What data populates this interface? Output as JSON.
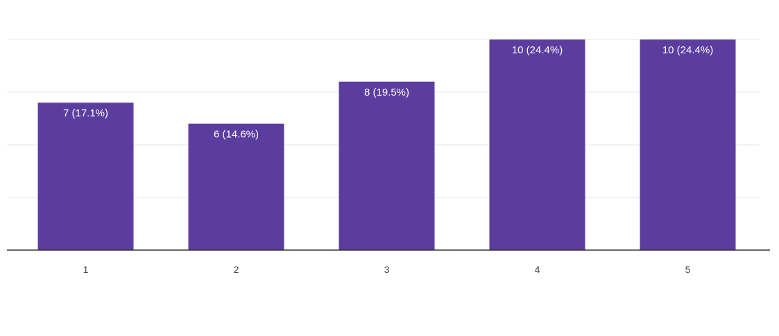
{
  "chart_data": {
    "type": "bar",
    "categories": [
      "1",
      "2",
      "3",
      "4",
      "5"
    ],
    "values": [
      7,
      6,
      8,
      10,
      10
    ],
    "data_labels": [
      "7 (17.1%)",
      "6 (14.6%)",
      "8 (19.5%)",
      "10 (24.4%)",
      "10 (24.4%)"
    ],
    "ylim": [
      0,
      10
    ],
    "grid": true,
    "bar_color": "#5b3da0",
    "gridline_color": "#eeeeee",
    "axis_color": "#333333"
  }
}
